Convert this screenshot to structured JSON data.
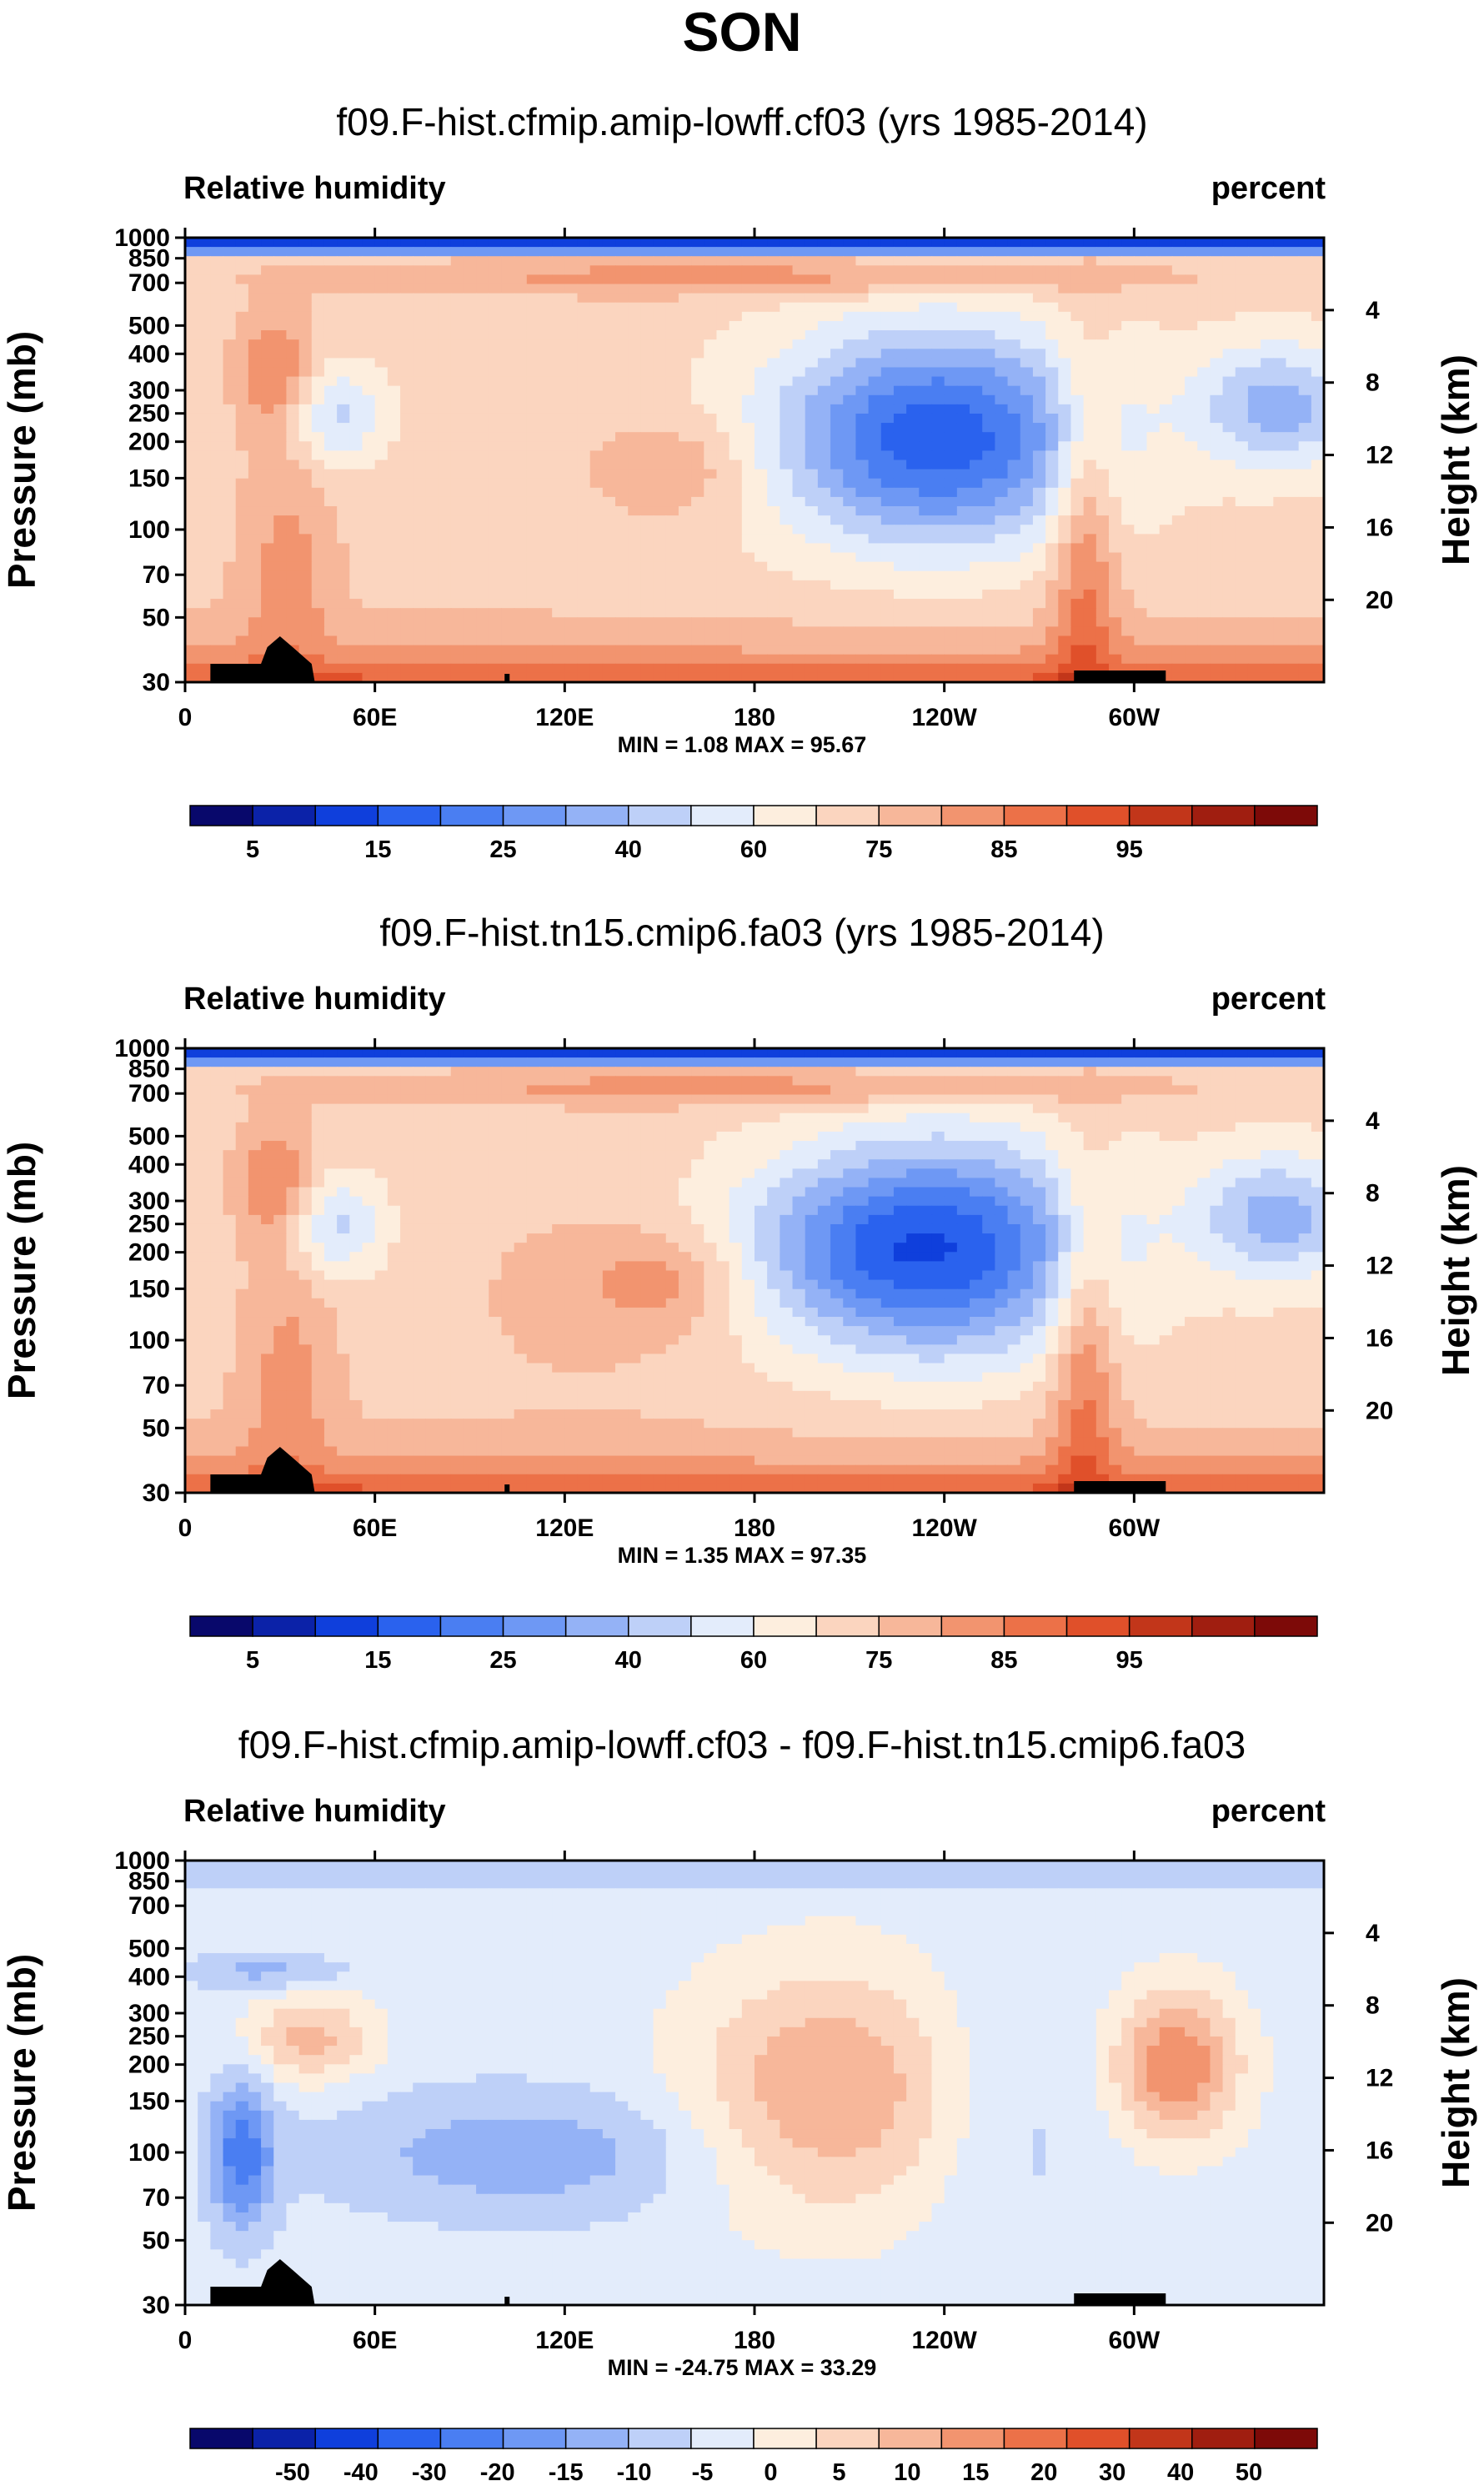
{
  "title": "SON",
  "chart_data": [
    {
      "type": "heatmap",
      "title": "f09.F-hist.cfmip.amip-lowff.cf03 (yrs 1985-2014)",
      "left_label": "Relative humidity",
      "right_label": "percent",
      "ylabel": "Pressure (mb)",
      "ylabel_right": "Height (km)",
      "x_ticks": [
        "0",
        "60E",
        "120E",
        "180",
        "120W",
        "60W"
      ],
      "x_tick_values": [
        0,
        60,
        120,
        180,
        240,
        300
      ],
      "xlim": [
        0,
        360
      ],
      "y_ticks": [
        "30",
        "50",
        "70",
        "100",
        "150",
        "200",
        "250",
        "300",
        "400",
        "500",
        "700",
        "850",
        "1000"
      ],
      "y_tick_values": [
        30,
        50,
        70,
        100,
        150,
        200,
        250,
        300,
        400,
        500,
        700,
        850,
        1000
      ],
      "ylim": [
        1000,
        30
      ],
      "height_ticks": [
        "20",
        "16",
        "12",
        "8",
        "4"
      ],
      "height_tick_values": [
        20,
        16,
        12,
        8,
        4
      ],
      "stats": "MIN =   1.08   MAX =  95.67",
      "colorbar_labels": [
        "5",
        "15",
        "25",
        "40",
        "60",
        "75",
        "85",
        "95"
      ],
      "colorbar_levels": [
        5,
        10,
        15,
        20,
        25,
        30,
        40,
        50,
        60,
        70,
        75,
        80,
        85,
        90,
        95
      ],
      "colormap": "diverging"
    },
    {
      "type": "heatmap",
      "title": "f09.F-hist.tn15.cmip6.fa03 (yrs 1985-2014)",
      "left_label": "Relative humidity",
      "right_label": "percent",
      "ylabel": "Pressure (mb)",
      "ylabel_right": "Height (km)",
      "x_ticks": [
        "0",
        "60E",
        "120E",
        "180",
        "120W",
        "60W"
      ],
      "x_tick_values": [
        0,
        60,
        120,
        180,
        240,
        300
      ],
      "xlim": [
        0,
        360
      ],
      "y_ticks": [
        "30",
        "50",
        "70",
        "100",
        "150",
        "200",
        "250",
        "300",
        "400",
        "500",
        "700",
        "850",
        "1000"
      ],
      "y_tick_values": [
        30,
        50,
        70,
        100,
        150,
        200,
        250,
        300,
        400,
        500,
        700,
        850,
        1000
      ],
      "ylim": [
        1000,
        30
      ],
      "height_ticks": [
        "20",
        "16",
        "12",
        "8",
        "4"
      ],
      "height_tick_values": [
        20,
        16,
        12,
        8,
        4
      ],
      "stats": "MIN =   1.35   MAX =  97.35",
      "colorbar_labels": [
        "5",
        "15",
        "25",
        "40",
        "60",
        "75",
        "85",
        "95"
      ],
      "colorbar_levels": [
        5,
        10,
        15,
        20,
        25,
        30,
        40,
        50,
        60,
        70,
        75,
        80,
        85,
        90,
        95
      ],
      "colormap": "diverging"
    },
    {
      "type": "heatmap",
      "title": "f09.F-hist.cfmip.amip-lowff.cf03 - f09.F-hist.tn15.cmip6.fa03",
      "left_label": "Relative humidity",
      "right_label": "percent",
      "ylabel": "Pressure (mb)",
      "ylabel_right": "Height (km)",
      "x_ticks": [
        "0",
        "60E",
        "120E",
        "180",
        "120W",
        "60W"
      ],
      "x_tick_values": [
        0,
        60,
        120,
        180,
        240,
        300
      ],
      "xlim": [
        0,
        360
      ],
      "y_ticks": [
        "30",
        "50",
        "70",
        "100",
        "150",
        "200",
        "250",
        "300",
        "400",
        "500",
        "700",
        "850",
        "1000"
      ],
      "y_tick_values": [
        30,
        50,
        70,
        100,
        150,
        200,
        250,
        300,
        400,
        500,
        700,
        850,
        1000
      ],
      "ylim": [
        1000,
        30
      ],
      "height_ticks": [
        "20",
        "16",
        "12",
        "8",
        "4"
      ],
      "height_tick_values": [
        20,
        16,
        12,
        8,
        4
      ],
      "stats": "MIN = -24.75  MAX =  33.29",
      "colorbar_labels": [
        "-50",
        "-40",
        "-30",
        "-20",
        "-15",
        "-10",
        "-5",
        "0",
        "5",
        "10",
        "15",
        "20",
        "30",
        "40",
        "50"
      ],
      "colorbar_levels": [
        -50,
        -40,
        -30,
        -20,
        -15,
        -10,
        -5,
        0,
        5,
        10,
        15,
        20,
        30,
        40,
        50
      ],
      "colormap": "diverging"
    }
  ],
  "colors": [
    "#08086b",
    "#0b22a8",
    "#0f3fdc",
    "#2a62ee",
    "#4a7ef2",
    "#6e98f4",
    "#94b2f6",
    "#bed0f8",
    "#e3ecfb",
    "#fdeede",
    "#fbd5bf",
    "#f7b79a",
    "#f2946f",
    "#ec7148",
    "#e0502a",
    "#c2361a",
    "#a01e10",
    "#7d0a08"
  ]
}
